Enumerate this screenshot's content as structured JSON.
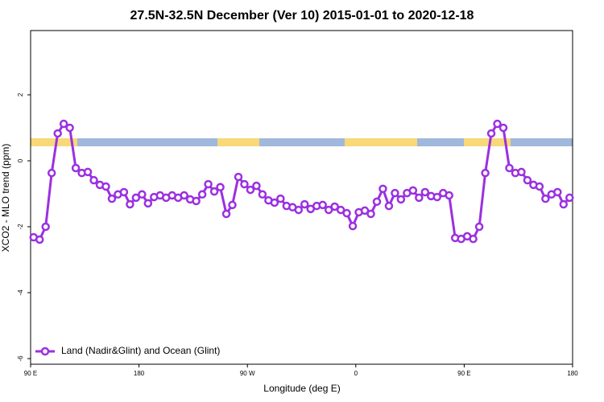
{
  "chart_data": {
    "type": "line",
    "title": "27.5N-32.5N December (Ver 10)   2015-01-01 to 2020-12-18",
    "x_label": "Longitude (deg E)",
    "y_label": "XCO2 - MLO trend (ppm)",
    "xlim": [
      90,
      540
    ],
    "ylim": [
      -6.17,
      3.95
    ],
    "xticks": [
      {
        "value": 90,
        "label": "90 E"
      },
      {
        "value": 180,
        "label": "180"
      },
      {
        "value": 270,
        "label": "90 W"
      },
      {
        "value": 360,
        "label": "0"
      },
      {
        "value": 450,
        "label": "90 E"
      },
      {
        "value": 540,
        "label": "180"
      }
    ],
    "yticks": [
      -6,
      -4,
      -2,
      0,
      2
    ],
    "legend": "bottom-left",
    "x": [
      92.5,
      97.5,
      102.5,
      107.5,
      112.5,
      117.5,
      122.5,
      127.5,
      132.5,
      137.5,
      142.5,
      147.5,
      152.5,
      157.5,
      162.5,
      167.5,
      172.5,
      177.5,
      182.5,
      187.5,
      192.5,
      197.5,
      202.5,
      207.5,
      212.5,
      217.5,
      222.5,
      227.5,
      232.5,
      237.5,
      242.5,
      247.5,
      252.5,
      257.5,
      262.5,
      267.5,
      272.5,
      277.5,
      282.5,
      287.5,
      292.5,
      297.5,
      302.5,
      307.5,
      312.5,
      317.5,
      322.5,
      327.5,
      332.5,
      337.5,
      342.5,
      347.5,
      352.5,
      357.5,
      362.5,
      367.5,
      372.5,
      377.5,
      382.5,
      387.5,
      392.5,
      397.5,
      402.5,
      407.5,
      412.5,
      417.5,
      422.5,
      427.5,
      432.5,
      437.5,
      442.5,
      447.5,
      452.5,
      457.5,
      462.5,
      467.5,
      472.5,
      477.5,
      482.5,
      487.5,
      492.5,
      497.5,
      502.5,
      507.5,
      512.5,
      517.5,
      522.5,
      527.5,
      532.5,
      537.5
    ],
    "series": [
      {
        "name": "Land (Nadir&Glint) and Ocean (Glint)",
        "color": "#9b30e0",
        "values": [
          -2.32,
          -2.39,
          -2.0,
          -0.37,
          0.83,
          1.12,
          1.0,
          -0.22,
          -0.37,
          -0.34,
          -0.59,
          -0.73,
          -0.78,
          -1.15,
          -1.02,
          -0.95,
          -1.32,
          -1.12,
          -1.02,
          -1.29,
          -1.1,
          -1.05,
          -1.12,
          -1.05,
          -1.12,
          -1.05,
          -1.17,
          -1.22,
          -1.02,
          -0.71,
          -0.93,
          -0.8,
          -1.61,
          -1.34,
          -0.49,
          -0.71,
          -0.88,
          -0.76,
          -1.02,
          -1.2,
          -1.27,
          -1.15,
          -1.37,
          -1.41,
          -1.49,
          -1.32,
          -1.46,
          -1.37,
          -1.34,
          -1.49,
          -1.39,
          -1.49,
          -1.59,
          -1.98,
          -1.56,
          -1.51,
          -1.61,
          -1.24,
          -0.85,
          -1.37,
          -0.98,
          -1.17,
          -0.98,
          -0.9,
          -1.12,
          -0.95,
          -1.07,
          -1.1,
          -0.98,
          -1.05,
          -2.34,
          -2.37,
          -2.29,
          -2.37,
          -2.0,
          -0.37,
          0.83,
          1.12,
          1.0,
          -0.22,
          -0.37,
          -0.34,
          -0.59,
          -0.73,
          -0.78,
          -1.15,
          -1.02,
          -0.95,
          -1.32,
          -1.12
        ]
      }
    ]
  }
}
